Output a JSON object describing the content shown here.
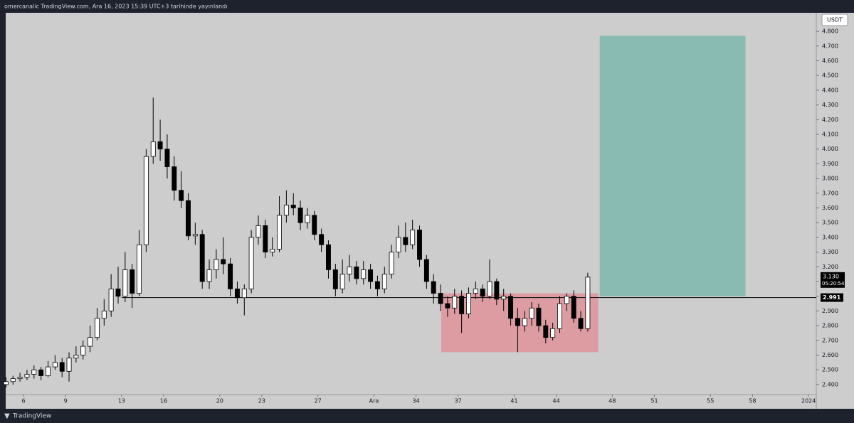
{
  "header": {
    "text": "omercanalic TradingView.com, Ara 16, 2023 15:39 UTC+3 tarihinde yayınlandı"
  },
  "footer": {
    "brand": "TradingView"
  },
  "chart_data": {
    "type": "candlestick",
    "currency": "USDT",
    "up_color": "#ffffff",
    "down_color": "#000000",
    "wick_color": "#000000",
    "x": [
      4.75,
      5.25,
      5.75,
      6.25,
      6.75,
      7.25,
      7.75,
      8.25,
      8.75,
      9.25,
      9.75,
      10.25,
      10.75,
      11.25,
      11.75,
      12.25,
      12.75,
      13.25,
      13.75,
      14.25,
      14.75,
      15.25,
      15.75,
      16.25,
      16.75,
      17.25,
      17.75,
      18.25,
      18.75,
      19.25,
      19.75,
      20.25,
      20.75,
      21.25,
      21.75,
      22.25,
      22.75,
      23.25,
      23.75,
      24.25,
      24.75,
      25.25,
      25.75,
      26.25,
      26.75,
      27.25,
      27.75,
      28.25,
      28.75,
      29.25,
      29.75,
      30.25,
      30.75,
      31.25,
      31.75,
      32.25,
      32.75,
      33.25,
      33.75,
      34.25,
      34.75,
      35.25,
      35.75,
      36.25,
      36.75,
      37.25,
      37.75,
      38.25,
      38.75,
      39.25,
      39.75,
      40.25,
      40.75,
      41.25,
      41.75,
      42.25,
      42.75,
      43.25,
      43.75,
      44.25,
      44.75,
      45.25,
      45.75,
      46.25
    ],
    "open": [
      2.4,
      2.42,
      2.44,
      2.45,
      2.47,
      2.5,
      2.46,
      2.52,
      2.55,
      2.49,
      2.58,
      2.6,
      2.66,
      2.72,
      2.85,
      2.9,
      3.05,
      3.0,
      3.18,
      3.02,
      3.35,
      3.95,
      4.05,
      4.0,
      3.88,
      3.72,
      3.65,
      3.41,
      3.42,
      3.1,
      3.18,
      3.25,
      3.22,
      3.05,
      2.99,
      3.05,
      3.4,
      3.48,
      3.3,
      3.32,
      3.55,
      3.62,
      3.6,
      3.5,
      3.55,
      3.42,
      3.35,
      3.18,
      3.05,
      3.15,
      3.2,
      3.12,
      3.18,
      3.1,
      3.05,
      3.15,
      3.3,
      3.4,
      3.35,
      3.45,
      3.25,
      3.1,
      3.02,
      2.95,
      2.92,
      3.0,
      2.88,
      3.02,
      3.05,
      3.0,
      3.1,
      2.98,
      3.0,
      2.85,
      2.8,
      2.85,
      2.92,
      2.8,
      2.72,
      2.78,
      2.95,
      3.0,
      2.85,
      2.78
    ],
    "high": [
      2.45,
      2.46,
      2.48,
      2.5,
      2.53,
      2.52,
      2.56,
      2.6,
      2.58,
      2.62,
      2.66,
      2.7,
      2.8,
      2.92,
      2.98,
      3.15,
      3.2,
      3.3,
      3.22,
      3.45,
      4.0,
      4.35,
      4.2,
      4.1,
      3.95,
      3.85,
      3.7,
      3.5,
      3.45,
      3.25,
      3.32,
      3.4,
      3.26,
      3.1,
      3.08,
      3.45,
      3.55,
      3.52,
      3.4,
      3.68,
      3.72,
      3.7,
      3.65,
      3.6,
      3.58,
      3.46,
      3.38,
      3.22,
      3.25,
      3.28,
      3.24,
      3.24,
      3.22,
      3.14,
      3.2,
      3.35,
      3.48,
      3.5,
      3.52,
      3.48,
      3.28,
      3.15,
      3.08,
      3.0,
      3.05,
      3.04,
      3.06,
      3.1,
      3.08,
      3.25,
      3.12,
      3.05,
      3.02,
      2.92,
      2.9,
      2.96,
      2.95,
      2.84,
      2.82,
      3.0,
      3.02,
      3.04,
      2.9,
      3.16
    ],
    "low": [
      2.38,
      2.4,
      2.42,
      2.43,
      2.44,
      2.43,
      2.45,
      2.5,
      2.45,
      2.42,
      2.55,
      2.57,
      2.62,
      2.7,
      2.8,
      2.86,
      2.95,
      2.96,
      2.92,
      3.0,
      3.3,
      3.9,
      3.92,
      3.8,
      3.65,
      3.6,
      3.38,
      3.35,
      3.05,
      3.05,
      3.12,
      3.15,
      3.0,
      2.95,
      2.87,
      3.02,
      3.35,
      3.26,
      3.27,
      3.3,
      3.5,
      3.55,
      3.45,
      3.46,
      3.38,
      3.3,
      3.12,
      3.0,
      3.02,
      3.1,
      3.08,
      3.08,
      3.05,
      3.0,
      3.02,
      3.12,
      3.26,
      3.3,
      3.32,
      3.2,
      3.05,
      2.95,
      2.9,
      2.86,
      2.88,
      2.75,
      2.85,
      2.98,
      2.96,
      2.98,
      2.94,
      2.9,
      2.8,
      2.62,
      2.76,
      2.8,
      2.76,
      2.68,
      2.7,
      2.75,
      2.9,
      2.82,
      2.76,
      2.76
    ],
    "close": [
      2.42,
      2.44,
      2.45,
      2.47,
      2.5,
      2.46,
      2.52,
      2.55,
      2.49,
      2.58,
      2.6,
      2.66,
      2.72,
      2.85,
      2.9,
      3.05,
      3.0,
      3.18,
      3.02,
      3.35,
      3.95,
      4.05,
      4.0,
      3.88,
      3.72,
      3.65,
      3.41,
      3.42,
      3.1,
      3.18,
      3.25,
      3.22,
      3.05,
      2.99,
      3.05,
      3.4,
      3.48,
      3.3,
      3.32,
      3.55,
      3.62,
      3.6,
      3.5,
      3.55,
      3.42,
      3.35,
      3.18,
      3.05,
      3.15,
      3.2,
      3.12,
      3.18,
      3.1,
      3.05,
      3.15,
      3.3,
      3.4,
      3.35,
      3.45,
      3.25,
      3.1,
      3.02,
      2.95,
      2.92,
      3.0,
      2.88,
      3.02,
      3.05,
      3.0,
      3.1,
      2.98,
      3.0,
      2.85,
      2.8,
      2.85,
      2.92,
      2.8,
      2.72,
      2.78,
      2.95,
      3.0,
      2.85,
      2.78,
      3.13
    ],
    "xlim": [
      4.73,
      62.55
    ],
    "ylim": [
      2.332,
      4.926
    ],
    "xticks": [
      6,
      9,
      13,
      16,
      20,
      23,
      27,
      {
        "value": 31,
        "label": "Ara"
      },
      34,
      37,
      41,
      44,
      48,
      51,
      55,
      58,
      {
        "value": 62,
        "label": "2024"
      }
    ],
    "yticks": [
      {
        "value": 2.4,
        "label": "2.400"
      },
      {
        "value": 2.5,
        "label": "2.500"
      },
      {
        "value": 2.6,
        "label": "2.600"
      },
      {
        "value": 2.7,
        "label": "2.700"
      },
      {
        "value": 2.8,
        "label": "2.800"
      },
      {
        "value": 2.9,
        "label": "2.900"
      },
      {
        "value": 3.0,
        "label": "3.000"
      },
      {
        "value": 3.1,
        "label": "3.100"
      },
      {
        "value": 3.2,
        "label": "3.200"
      },
      {
        "value": 3.3,
        "label": "3.300"
      },
      {
        "value": 3.4,
        "label": "3.400"
      },
      {
        "value": 3.5,
        "label": "3.500"
      },
      {
        "value": 3.6,
        "label": "3.600"
      },
      {
        "value": 3.7,
        "label": "3.700"
      },
      {
        "value": 3.8,
        "label": "3.800"
      },
      {
        "value": 3.9,
        "label": "3.900"
      },
      {
        "value": 4.0,
        "label": "4.000"
      },
      {
        "value": 4.1,
        "label": "4.100"
      },
      {
        "value": 4.2,
        "label": "4.200"
      },
      {
        "value": 4.3,
        "label": "4.300"
      },
      {
        "value": 4.4,
        "label": "4.400"
      },
      {
        "value": 4.5,
        "label": "4.500"
      },
      {
        "value": 4.6,
        "label": "4.600"
      },
      {
        "value": 4.7,
        "label": "4.700"
      },
      {
        "value": 4.8,
        "label": "4.800"
      }
    ],
    "zones": [
      {
        "x0": 35.8,
        "x1": 47.0,
        "y0": 2.62,
        "y1": 3.02,
        "color": "#dc9ca2"
      },
      {
        "x0": 47.1,
        "x1": 57.5,
        "y0": 3.0,
        "y1": 4.77,
        "color": "#8abbb3"
      }
    ],
    "level": {
      "value": 2.991,
      "label": "2.991",
      "x0": 13
    },
    "last_price": {
      "value": 3.13,
      "label": "3.130",
      "countdown": "05:20:54"
    }
  }
}
